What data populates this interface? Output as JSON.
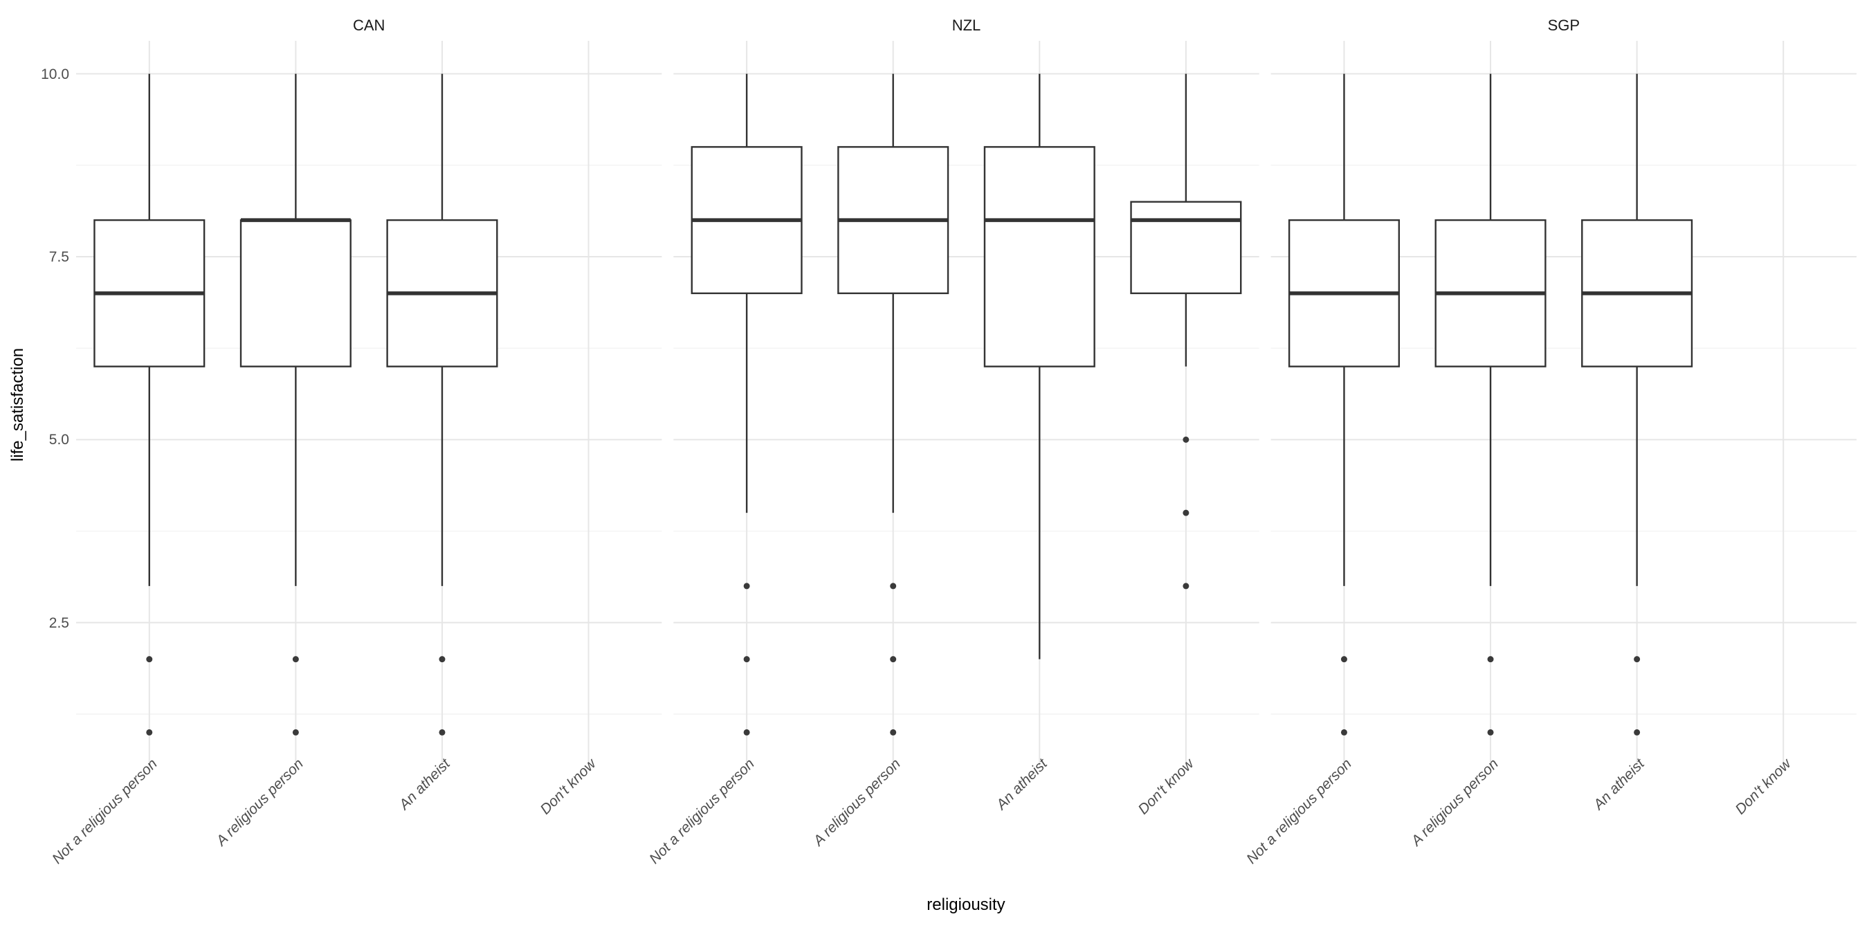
{
  "chart_data": {
    "type": "boxplot",
    "title": "",
    "xlabel": "religiousity",
    "ylabel": "life_satisfaction",
    "ylim": [
      0.55,
      10.45
    ],
    "y_major_ticks": [
      2.5,
      5.0,
      7.5,
      10.0
    ],
    "y_tick_labels": [
      "2.5",
      "5.0",
      "7.5",
      "10.0"
    ],
    "y_minor_ticks": [
      1.25,
      3.75,
      6.25,
      8.75
    ],
    "grid": "on",
    "legend": "none",
    "categories": [
      "Not a religious person",
      "A religious person",
      "An atheist",
      "Don't know"
    ],
    "facets": [
      {
        "label": "CAN",
        "boxes": [
          {
            "category": "Not a religious person",
            "whisker_low": 3,
            "q1": 6,
            "median": 7,
            "q3": 8,
            "whisker_high": 10,
            "outliers": [
              2,
              1
            ]
          },
          {
            "category": "A religious person",
            "whisker_low": 3,
            "q1": 6,
            "median": 8,
            "q3": 8,
            "whisker_high": 10,
            "outliers": [
              2,
              1
            ]
          },
          {
            "category": "An atheist",
            "whisker_low": 3,
            "q1": 6,
            "median": 7,
            "q3": 8,
            "whisker_high": 10,
            "outliers": [
              2,
              1
            ]
          },
          {
            "category": "Don't know",
            "whisker_low": null,
            "q1": null,
            "median": null,
            "q3": null,
            "whisker_high": null,
            "outliers": []
          }
        ]
      },
      {
        "label": "NZL",
        "boxes": [
          {
            "category": "Not a religious person",
            "whisker_low": 4,
            "q1": 7,
            "median": 8,
            "q3": 9,
            "whisker_high": 10,
            "outliers": [
              3,
              2,
              1
            ]
          },
          {
            "category": "A religious person",
            "whisker_low": 4,
            "q1": 7,
            "median": 8,
            "q3": 9,
            "whisker_high": 10,
            "outliers": [
              3,
              2,
              1
            ]
          },
          {
            "category": "An atheist",
            "whisker_low": 2,
            "q1": 6,
            "median": 8,
            "q3": 9,
            "whisker_high": 10,
            "outliers": []
          },
          {
            "category": "Don't know",
            "whisker_low": 6,
            "q1": 7,
            "median": 8,
            "q3": 8.25,
            "whisker_high": 10,
            "outliers": [
              5,
              4,
              3
            ]
          }
        ]
      },
      {
        "label": "SGP",
        "boxes": [
          {
            "category": "Not a religious person",
            "whisker_low": 3,
            "q1": 6,
            "median": 7,
            "q3": 8,
            "whisker_high": 10,
            "outliers": [
              2,
              1
            ]
          },
          {
            "category": "A religious person",
            "whisker_low": 3,
            "q1": 6,
            "median": 7,
            "q3": 8,
            "whisker_high": 10,
            "outliers": [
              2,
              1
            ]
          },
          {
            "category": "An atheist",
            "whisker_low": 3,
            "q1": 6,
            "median": 7,
            "q3": 8,
            "whisker_high": 10,
            "outliers": [
              2,
              1
            ]
          },
          {
            "category": "Don't know",
            "whisker_low": null,
            "q1": null,
            "median": null,
            "q3": null,
            "whisker_high": null,
            "outliers": []
          }
        ]
      }
    ],
    "style": {
      "background": "#FFFFFF",
      "box_line_color": "#333333",
      "outlier_color": "#3A3A3A",
      "grid_major_color": "#E6E6E6",
      "grid_minor_color": "#F1F1F1",
      "axis_text_color": "#4D4D4D",
      "strip_text_color": "#1A1A1A",
      "axis_title_color": "#000000"
    }
  }
}
